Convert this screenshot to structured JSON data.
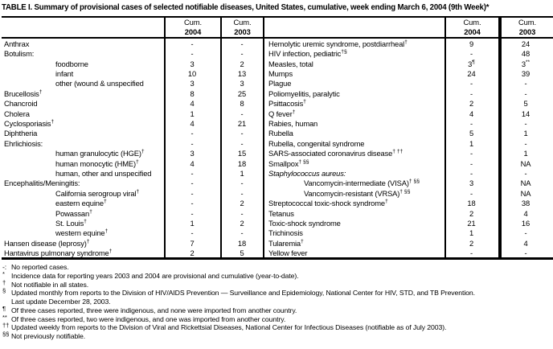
{
  "title": "TABLE I. Summary of provisional cases of selected notifiable diseases, United States, cumulative, week ending March 6, 2004 (9th Week)*",
  "header": {
    "cum": "Cum.",
    "y2004": "2004",
    "y2003": "2003"
  },
  "table": {
    "left_rows": [
      {
        "name": "Anthrax",
        "v04": "-",
        "v03": "-"
      },
      {
        "name": "Botulism:",
        "v04": "-",
        "v03": "-"
      },
      {
        "name": "foodborne",
        "indent": 1,
        "v04": "3",
        "v03": "2"
      },
      {
        "name": "infant",
        "indent": 1,
        "v04": "10",
        "v03": "13"
      },
      {
        "name": "other (wound & unspecified",
        "indent": 1,
        "v04": "3",
        "v03": "3"
      },
      {
        "name": "Brucellosis",
        "sup": "†",
        "v04": "8",
        "v03": "25"
      },
      {
        "name": "Chancroid",
        "v04": "4",
        "v03": "8"
      },
      {
        "name": "Cholera",
        "v04": "1",
        "v03": "-"
      },
      {
        "name": "Cyclosporiasis",
        "sup": "†",
        "v04": "4",
        "v03": "21"
      },
      {
        "name": "Diphtheria",
        "v04": "-",
        "v03": "-"
      },
      {
        "name": "Ehrlichiosis:",
        "v04": "-",
        "v03": "-"
      },
      {
        "name": "human granulocytic (HGE)",
        "sup": "†",
        "indent": 1,
        "v04": "3",
        "v03": "15"
      },
      {
        "name": "human monocytic (HME)",
        "sup": "†",
        "indent": 1,
        "v04": "4",
        "v03": "18"
      },
      {
        "name": "human, other and unspecified",
        "indent": 1,
        "v04": "-",
        "v03": "1"
      },
      {
        "name": "Encephalitis/Meningitis:",
        "v04": "-",
        "v03": "-"
      },
      {
        "name": "California serogroup viral",
        "sup": "†",
        "indent": 1,
        "v04": "-",
        "v03": "-"
      },
      {
        "name": "eastern equine",
        "sup": "†",
        "indent": 1,
        "v04": "-",
        "v03": "2"
      },
      {
        "name": "Powassan",
        "sup": "†",
        "indent": 1,
        "v04": "-",
        "v03": "-"
      },
      {
        "name": "St. Louis",
        "sup": "†",
        "indent": 1,
        "v04": "1",
        "v03": "2"
      },
      {
        "name": "western equine",
        "sup": "†",
        "indent": 1,
        "v04": "-",
        "v03": "-"
      },
      {
        "name": "Hansen disease (leprosy)",
        "sup": "†",
        "v04": "7",
        "v03": "18"
      },
      {
        "name": "Hantavirus pulmonary syndrome",
        "sup": "†",
        "v04": "2",
        "v03": "5"
      }
    ],
    "right_rows": [
      {
        "name": "Hemolytic uremic syndrome, postdiarrheal",
        "sup": "†",
        "v04": "9",
        "v03": "24"
      },
      {
        "name": "HIV infection, pediatric",
        "sup": "†§",
        "v04": "-",
        "v03": "48"
      },
      {
        "name": "Measles, total",
        "v04": "3",
        "v04sup": "¶",
        "v03": "3",
        "v03sup": "**"
      },
      {
        "name": "Mumps",
        "v04": "24",
        "v03": "39"
      },
      {
        "name": "Plague",
        "v04": "-",
        "v03": "-"
      },
      {
        "name": "Poliomyelitis, paralytic",
        "v04": "-",
        "v03": "-"
      },
      {
        "name": "Psittacosis",
        "sup": "†",
        "v04": "2",
        "v03": "5"
      },
      {
        "name": "Q fever",
        "sup": "†",
        "v04": "4",
        "v03": "14"
      },
      {
        "name": "Rabies, human",
        "v04": "-",
        "v03": "-"
      },
      {
        "name": "Rubella",
        "v04": "5",
        "v03": "1"
      },
      {
        "name": "Rubella, congenital syndrome",
        "v04": "1",
        "v03": "-"
      },
      {
        "name": "SARS-associated coronavirus disease",
        "sup": "† ††",
        "v04": "-",
        "v03": "1"
      },
      {
        "name": "Smallpox",
        "sup": "† §§",
        "v04": "-",
        "v03": "NA"
      },
      {
        "name": "Staphylococcus aureus:",
        "italic": true,
        "v04": "-",
        "v03": "-"
      },
      {
        "name": "Vancomycin-intermediate (VISA)",
        "sup": "† §§",
        "indent": 1,
        "v04": "3",
        "v03": "NA"
      },
      {
        "name": "Vancomycin-resistant (VRSA)",
        "sup": "† §§",
        "indent": 1,
        "v04": "-",
        "v03": "NA"
      },
      {
        "name": "Streptococcal toxic-shock syndrome",
        "sup": "†",
        "v04": "18",
        "v03": "38"
      },
      {
        "name": "Tetanus",
        "v04": "2",
        "v03": "4"
      },
      {
        "name": "Toxic-shock syndrome",
        "v04": "21",
        "v03": "16"
      },
      {
        "name": "Trichinosis",
        "v04": "1",
        "v03": "-"
      },
      {
        "name": "Tularemia",
        "sup": "†",
        "v04": "2",
        "v03": "4"
      },
      {
        "name": "Yellow fever",
        "v04": "-",
        "v03": "-"
      }
    ]
  },
  "footnotes": [
    {
      "marker": "-:",
      "text": "No reported cases."
    },
    {
      "marker": "*",
      "text": "Incidence data for reporting years 2003 and 2004 are provisional and cumulative (year-to-date)."
    },
    {
      "marker": "†",
      "text": "Not notifiable in all states."
    },
    {
      "marker": "§",
      "text": "Updated monthly from reports to the Division of HIV/AIDS Prevention — Surveillance and Epidemiology, National Center for HIV, STD, and TB Prevention."
    },
    {
      "marker": "",
      "text": "Last update December 28, 2003."
    },
    {
      "marker": "¶",
      "text": "Of three cases reported, three were indigenous, and none were imported from another country."
    },
    {
      "marker": "**",
      "text": "Of three cases reported, two were indigenous, and one was imported from another country."
    },
    {
      "marker": "††",
      "text": "Updated weekly from reports to the Division of Viral and Rickettsial Diseases, National Center for Infectious Diseases (notifiable as of July 2003)."
    },
    {
      "marker": "§§",
      "text": "Not previously notifiable."
    }
  ],
  "colors": {
    "background": "#ffffff",
    "text": "#000000",
    "rule": "#000000"
  }
}
